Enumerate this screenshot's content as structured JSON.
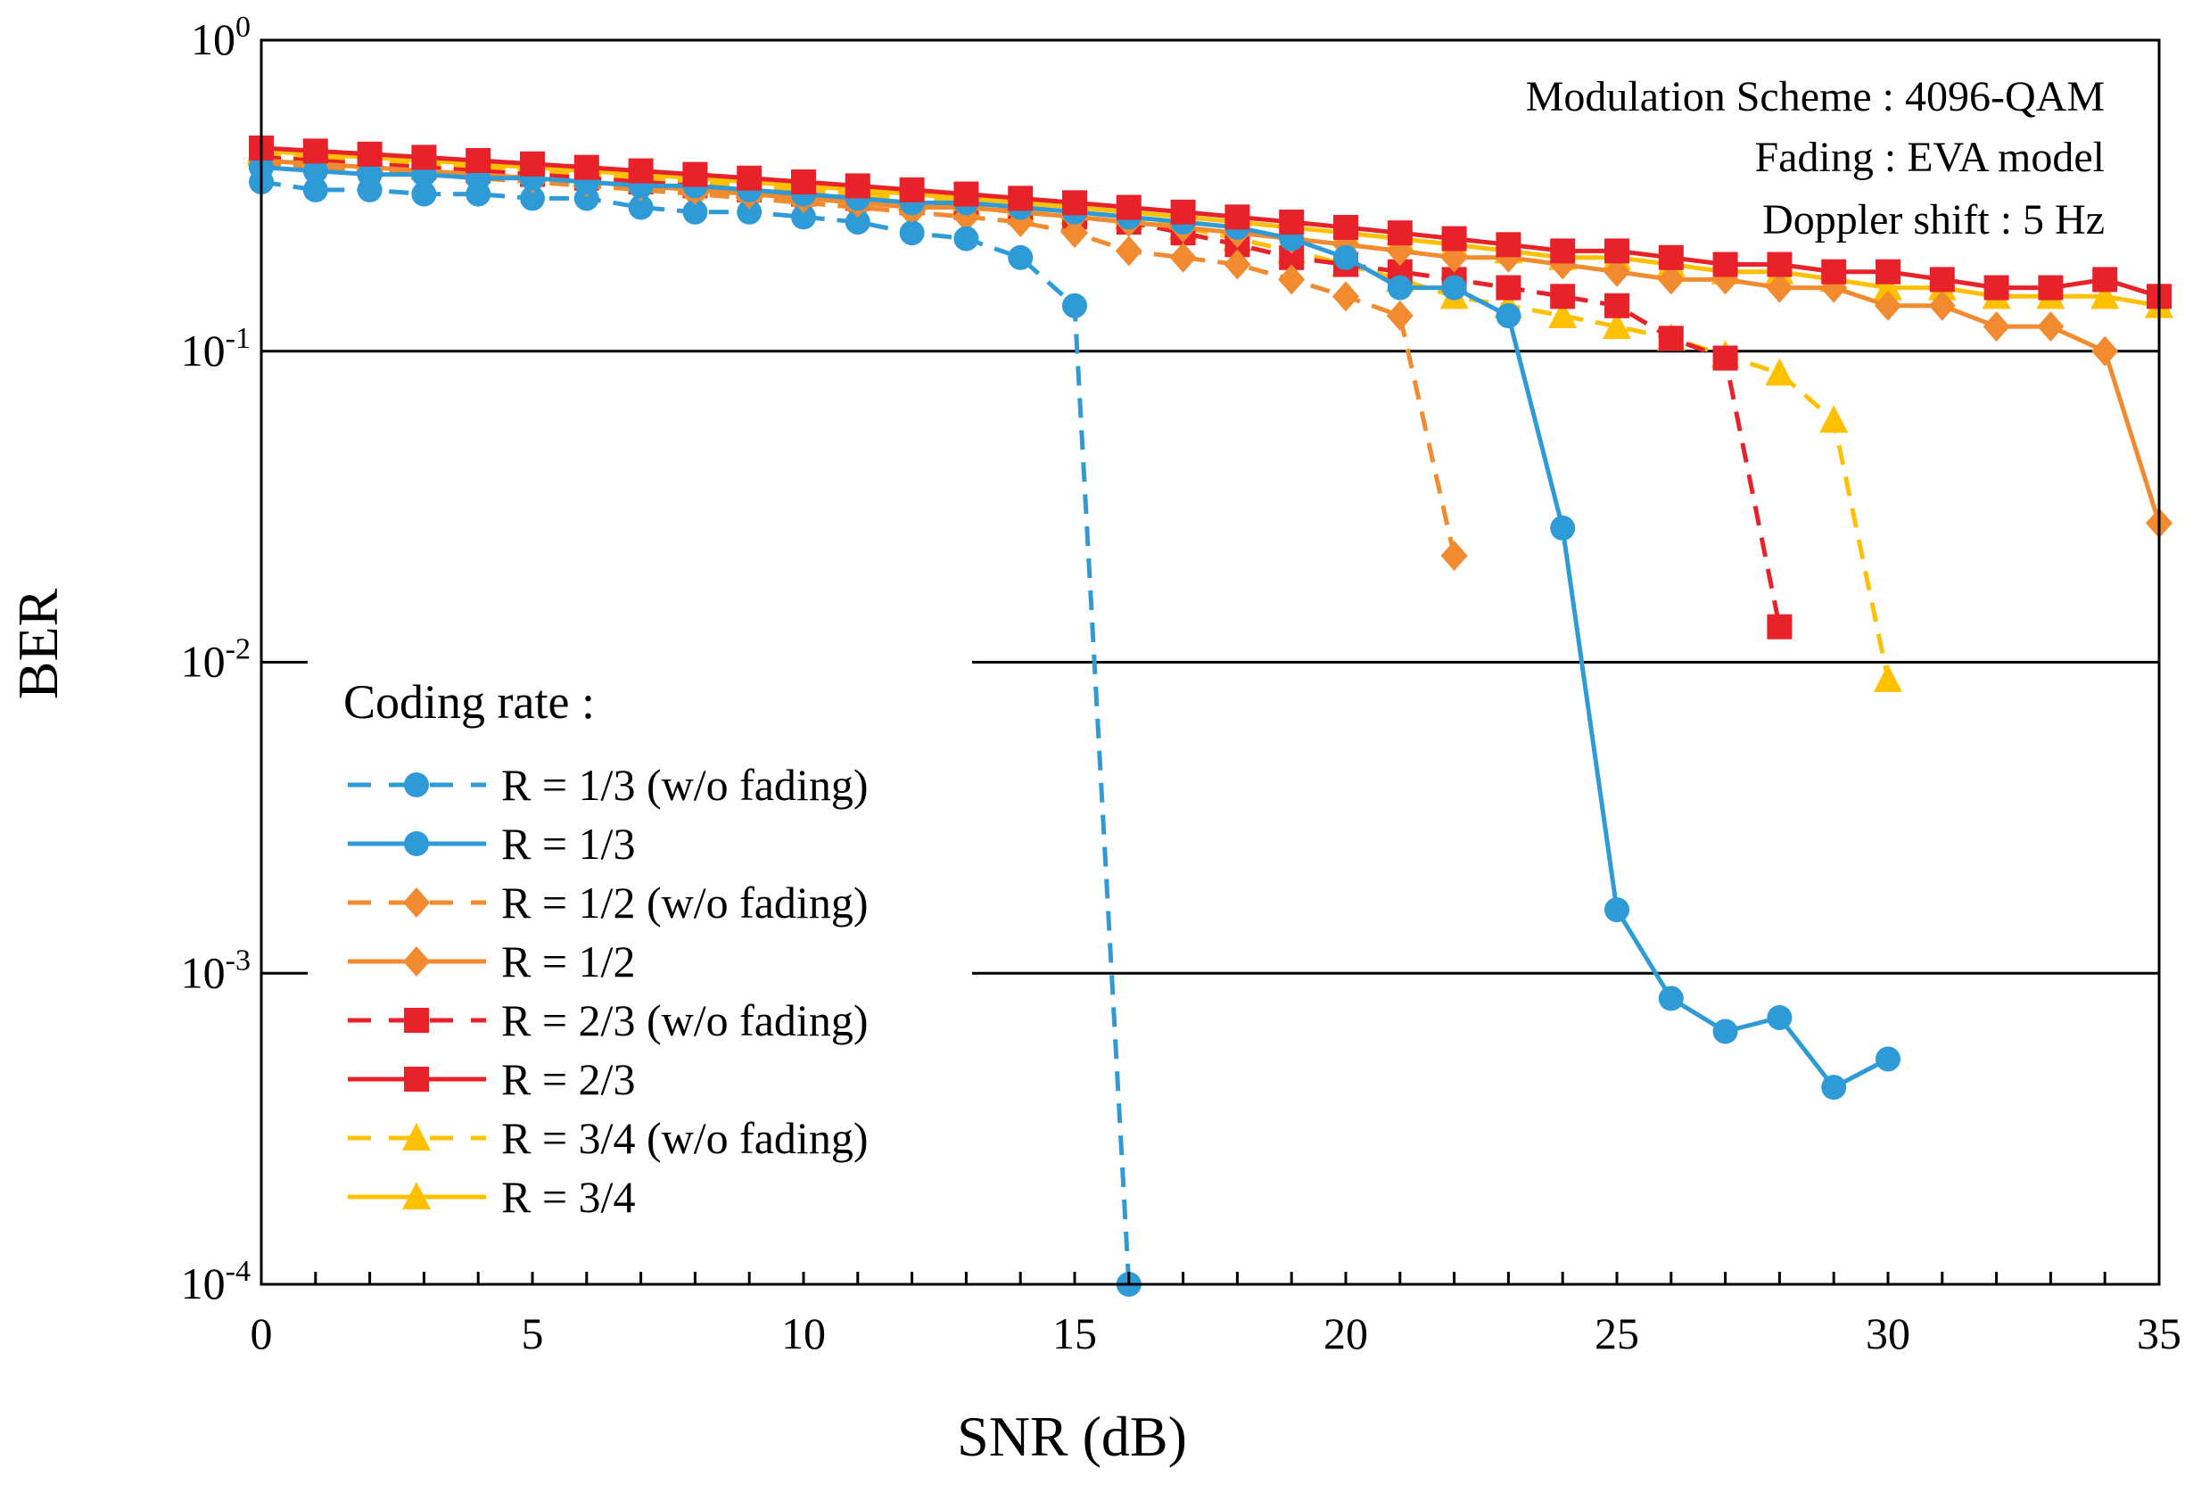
{
  "chart_data": {
    "type": "line",
    "title": "",
    "xlabel": "SNR (dB)",
    "ylabel": "BER",
    "xlim": [
      0,
      35
    ],
    "ylim_log10": [
      -4,
      0
    ],
    "y_scale": "log",
    "x_ticks": [
      "0",
      "5",
      "10",
      "15",
      "20",
      "25",
      "30",
      "35"
    ],
    "y_ticks": [
      {
        "base": "10",
        "exp": "0"
      },
      {
        "base": "10",
        "exp": "-1"
      },
      {
        "base": "10",
        "exp": "-2"
      },
      {
        "base": "10",
        "exp": "-3"
      },
      {
        "base": "10",
        "exp": "-4"
      }
    ],
    "grid": "horizontal major lines",
    "annotations": [
      "Modulation Scheme : 4096-QAM",
      "Fading : EVA model",
      "Doppler shift : 5 Hz"
    ],
    "legend_title": "Coding rate :",
    "legend_position": "left-middle",
    "series": [
      {
        "name": "R = 1/3 (w/o fading)",
        "color": "#2E9BD6",
        "dash": "dashed",
        "marker": "circle",
        "x": [
          0,
          1,
          2,
          3,
          4,
          5,
          6,
          7,
          8,
          9,
          10,
          11,
          12,
          13,
          14,
          15,
          16
        ],
        "y": [
          0.35,
          0.33,
          0.33,
          0.32,
          0.32,
          0.31,
          0.31,
          0.29,
          0.28,
          0.28,
          0.27,
          0.26,
          0.24,
          0.23,
          0.2,
          0.14,
          0.0001
        ]
      },
      {
        "name": "R = 1/3",
        "color": "#2E9BD6",
        "dash": "solid",
        "marker": "circle",
        "x": [
          0,
          1,
          2,
          3,
          4,
          5,
          6,
          7,
          8,
          9,
          10,
          11,
          12,
          13,
          14,
          15,
          16,
          17,
          18,
          19,
          20,
          21,
          22,
          23,
          24,
          25,
          26,
          27,
          28,
          29,
          30
        ],
        "y": [
          0.39,
          0.38,
          0.37,
          0.37,
          0.36,
          0.36,
          0.35,
          0.34,
          0.34,
          0.33,
          0.32,
          0.31,
          0.3,
          0.3,
          0.29,
          0.28,
          0.27,
          0.26,
          0.25,
          0.23,
          0.2,
          0.16,
          0.16,
          0.13,
          0.027,
          0.0016,
          0.00083,
          0.00065,
          0.00072,
          0.00043,
          0.00053
        ]
      },
      {
        "name": "R = 1/2 (w/o fading)",
        "color": "#F28A30",
        "dash": "dashed",
        "marker": "diamond",
        "x": [
          0,
          1,
          2,
          3,
          4,
          5,
          6,
          7,
          8,
          9,
          10,
          11,
          12,
          13,
          14,
          15,
          16,
          17,
          18,
          19,
          20,
          21,
          22
        ],
        "y": [
          0.4,
          0.39,
          0.38,
          0.37,
          0.36,
          0.35,
          0.34,
          0.33,
          0.32,
          0.31,
          0.3,
          0.29,
          0.28,
          0.27,
          0.26,
          0.24,
          0.21,
          0.2,
          0.19,
          0.17,
          0.15,
          0.13,
          0.022
        ]
      },
      {
        "name": "R = 1/2",
        "color": "#F28A30",
        "dash": "solid",
        "marker": "diamond",
        "x": [
          0,
          1,
          2,
          3,
          4,
          5,
          6,
          7,
          8,
          9,
          10,
          11,
          12,
          13,
          14,
          15,
          16,
          17,
          18,
          19,
          20,
          21,
          22,
          23,
          24,
          25,
          26,
          27,
          28,
          29,
          30,
          31,
          32,
          33,
          34,
          35
        ],
        "y": [
          0.41,
          0.4,
          0.39,
          0.38,
          0.37,
          0.36,
          0.35,
          0.34,
          0.33,
          0.32,
          0.31,
          0.3,
          0.29,
          0.29,
          0.28,
          0.27,
          0.26,
          0.25,
          0.24,
          0.23,
          0.22,
          0.21,
          0.2,
          0.2,
          0.19,
          0.18,
          0.17,
          0.17,
          0.16,
          0.16,
          0.14,
          0.14,
          0.12,
          0.12,
          0.1,
          0.028
        ]
      },
      {
        "name": "R = 2/3 (w/o fading)",
        "color": "#E8222A",
        "dash": "dashed",
        "marker": "square",
        "x": [
          0,
          1,
          2,
          3,
          4,
          5,
          6,
          7,
          8,
          9,
          10,
          11,
          12,
          13,
          14,
          15,
          16,
          17,
          18,
          19,
          20,
          21,
          22,
          23,
          24,
          25,
          26,
          27,
          28
        ],
        "y": [
          0.42,
          0.41,
          0.4,
          0.39,
          0.38,
          0.37,
          0.36,
          0.35,
          0.34,
          0.33,
          0.32,
          0.31,
          0.3,
          0.29,
          0.28,
          0.27,
          0.26,
          0.24,
          0.22,
          0.2,
          0.19,
          0.18,
          0.17,
          0.16,
          0.15,
          0.14,
          0.11,
          0.095,
          0.013
        ]
      },
      {
        "name": "R = 2/3",
        "color": "#E8222A",
        "dash": "solid",
        "marker": "square",
        "x": [
          0,
          1,
          2,
          3,
          4,
          5,
          6,
          7,
          8,
          9,
          10,
          11,
          12,
          13,
          14,
          15,
          16,
          17,
          18,
          19,
          20,
          21,
          22,
          23,
          24,
          25,
          26,
          27,
          28,
          29,
          30,
          31,
          32,
          33,
          34,
          35
        ],
        "y": [
          0.45,
          0.44,
          0.43,
          0.42,
          0.41,
          0.4,
          0.39,
          0.38,
          0.37,
          0.36,
          0.35,
          0.34,
          0.33,
          0.32,
          0.31,
          0.3,
          0.29,
          0.28,
          0.27,
          0.26,
          0.25,
          0.24,
          0.23,
          0.22,
          0.21,
          0.21,
          0.2,
          0.19,
          0.19,
          0.18,
          0.18,
          0.17,
          0.16,
          0.16,
          0.17,
          0.15
        ]
      },
      {
        "name": "R = 3/4 (w/o fading)",
        "color": "#FFC000",
        "dash": "dashed",
        "marker": "triangle",
        "x": [
          0,
          1,
          2,
          3,
          4,
          5,
          6,
          7,
          8,
          9,
          10,
          11,
          12,
          13,
          14,
          15,
          16,
          17,
          18,
          19,
          20,
          21,
          22,
          23,
          24,
          25,
          26,
          27,
          28,
          29,
          30
        ],
        "y": [
          0.43,
          0.42,
          0.41,
          0.4,
          0.39,
          0.38,
          0.37,
          0.36,
          0.35,
          0.34,
          0.33,
          0.32,
          0.31,
          0.3,
          0.29,
          0.28,
          0.27,
          0.25,
          0.23,
          0.21,
          0.19,
          0.17,
          0.15,
          0.14,
          0.13,
          0.12,
          0.11,
          0.097,
          0.085,
          0.06,
          0.0088
        ]
      },
      {
        "name": "R = 3/4",
        "color": "#FFC000",
        "dash": "solid",
        "marker": "triangle",
        "x": [
          0,
          1,
          2,
          3,
          4,
          5,
          6,
          7,
          8,
          9,
          10,
          11,
          12,
          13,
          14,
          15,
          16,
          17,
          18,
          19,
          20,
          21,
          22,
          23,
          24,
          25,
          26,
          27,
          28,
          29,
          30,
          31,
          32,
          33,
          34,
          35
        ],
        "y": [
          0.44,
          0.43,
          0.42,
          0.41,
          0.4,
          0.39,
          0.38,
          0.37,
          0.36,
          0.35,
          0.34,
          0.33,
          0.32,
          0.31,
          0.3,
          0.29,
          0.28,
          0.27,
          0.26,
          0.25,
          0.24,
          0.23,
          0.22,
          0.21,
          0.2,
          0.2,
          0.19,
          0.18,
          0.18,
          0.17,
          0.16,
          0.16,
          0.15,
          0.15,
          0.15,
          0.14
        ]
      }
    ]
  }
}
